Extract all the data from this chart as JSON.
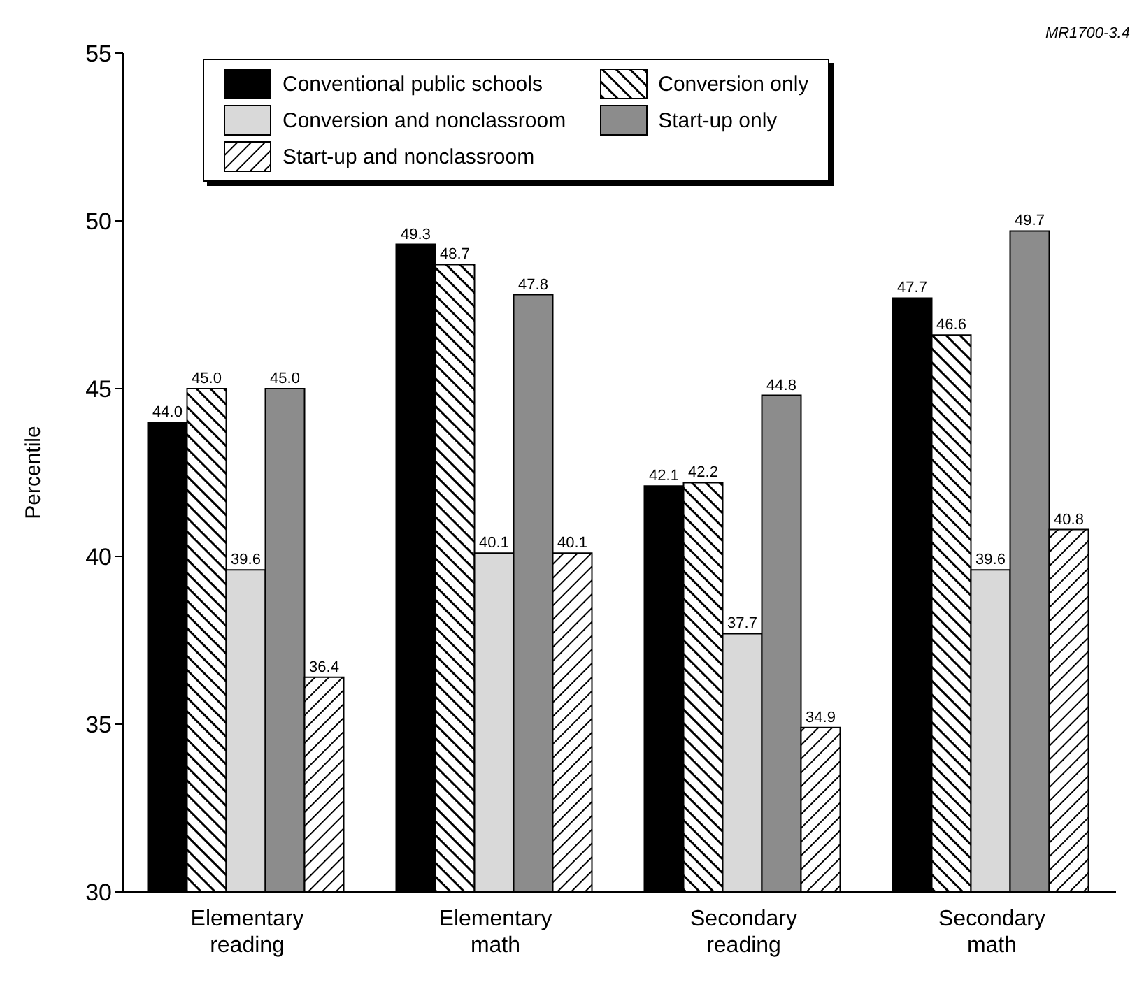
{
  "chart_data": {
    "type": "bar",
    "ylabel": "Percentile",
    "categories": [
      "Elementary reading",
      "Elementary math",
      "Secondary reading",
      "Secondary math"
    ],
    "series": [
      {
        "name": "Conventional public schools",
        "color": "#000000",
        "values": [
          44.0,
          49.3,
          42.1,
          47.7
        ],
        "value_labels": [
          "44.0",
          "49.3",
          "42.1",
          "47.7"
        ]
      },
      {
        "name": "Conversion only",
        "color": "#000000",
        "values": [
          45.0,
          48.7,
          42.2,
          46.6
        ],
        "value_labels": [
          "45.0",
          "48.7",
          "42.2",
          "46.6"
        ]
      },
      {
        "name": "Conversion and nonclassroom",
        "color": "#d9d9d9",
        "values": [
          39.6,
          40.1,
          37.7,
          39.6
        ],
        "value_labels": [
          "39.6",
          "40.1",
          "37.7",
          "39.6"
        ]
      },
      {
        "name": "Start-up only",
        "color": "#8c8c8c",
        "values": [
          45.0,
          47.8,
          44.8,
          49.7
        ],
        "value_labels": [
          "45.0",
          "47.8",
          "44.8",
          "49.7"
        ]
      },
      {
        "name": "Start-up and nonclassroom",
        "color": "#000000",
        "values": [
          36.4,
          40.1,
          34.9,
          40.8
        ],
        "value_labels": [
          "36.4",
          "40.1",
          "34.9",
          "40.8"
        ]
      }
    ],
    "ylim": [
      30,
      55
    ],
    "yticks": [
      30,
      35,
      40,
      45,
      50,
      55
    ],
    "grid": false,
    "legend": "top",
    "annotations": [
      "MR1700-3.4"
    ]
  }
}
